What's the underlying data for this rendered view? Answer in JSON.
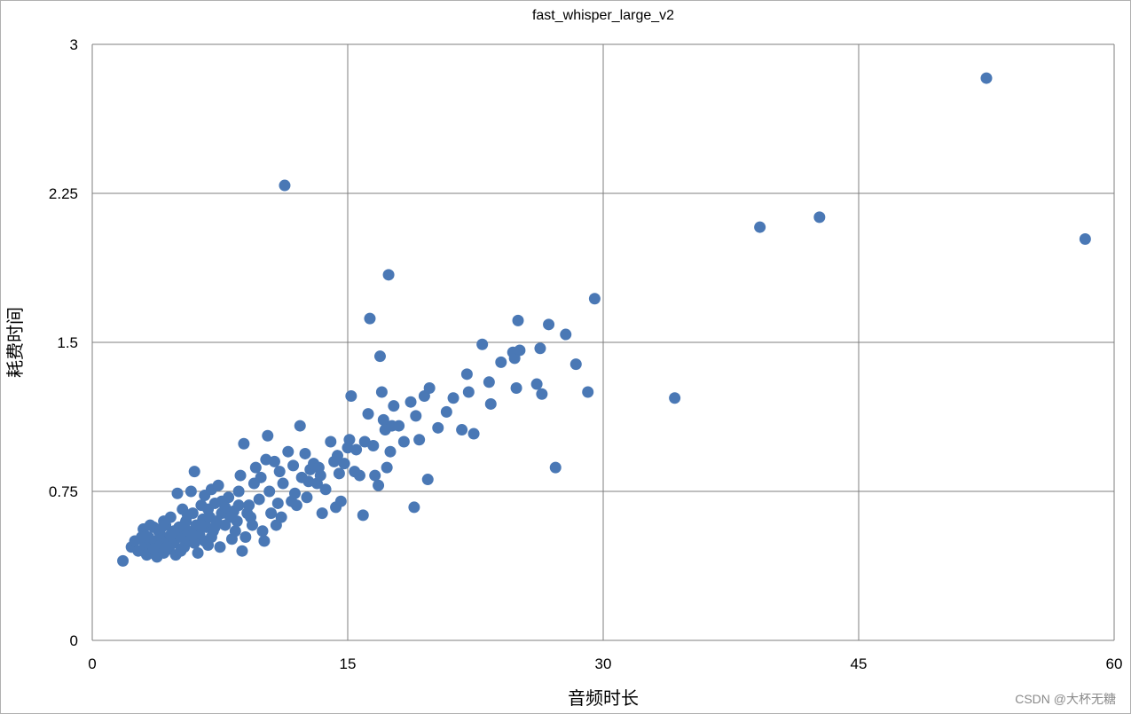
{
  "chart_data": {
    "type": "scatter",
    "title": "fast_whisper_large_v2",
    "xlabel": "音频时长",
    "ylabel": "耗费时间",
    "xlim": [
      0,
      60
    ],
    "ylim": [
      0,
      3
    ],
    "xticks": [
      "0",
      "15",
      "30",
      "45",
      "60"
    ],
    "yticks": [
      "0",
      "0.75",
      "1.5",
      "2.25",
      "3"
    ],
    "grid": true,
    "legend": "none",
    "point_color": "#4a78b5",
    "points": [
      [
        1.8,
        0.4
      ],
      [
        2.3,
        0.47
      ],
      [
        2.5,
        0.5
      ],
      [
        2.7,
        0.45
      ],
      [
        3.0,
        0.56
      ],
      [
        3.1,
        0.48
      ],
      [
        3.3,
        0.52
      ],
      [
        3.4,
        0.46
      ],
      [
        3.5,
        0.44
      ],
      [
        3.6,
        0.57
      ],
      [
        3.7,
        0.5
      ],
      [
        3.8,
        0.42
      ],
      [
        3.9,
        0.55
      ],
      [
        4.0,
        0.48
      ],
      [
        4.1,
        0.52
      ],
      [
        4.2,
        0.44
      ],
      [
        4.3,
        0.58
      ],
      [
        4.4,
        0.5
      ],
      [
        4.5,
        0.46
      ],
      [
        4.6,
        0.62
      ],
      [
        4.7,
        0.54
      ],
      [
        4.8,
        0.49
      ],
      [
        4.9,
        0.43
      ],
      [
        5.0,
        0.74
      ],
      [
        5.1,
        0.57
      ],
      [
        5.2,
        0.52
      ],
      [
        5.3,
        0.66
      ],
      [
        5.4,
        0.47
      ],
      [
        5.5,
        0.6
      ],
      [
        5.6,
        0.55
      ],
      [
        5.7,
        0.5
      ],
      [
        5.8,
        0.75
      ],
      [
        5.9,
        0.64
      ],
      [
        6.0,
        0.85
      ],
      [
        6.1,
        0.58
      ],
      [
        6.2,
        0.44
      ],
      [
        6.3,
        0.53
      ],
      [
        6.4,
        0.68
      ],
      [
        6.5,
        0.61
      ],
      [
        6.6,
        0.5
      ],
      [
        6.7,
        0.57
      ],
      [
        6.8,
        0.66
      ],
      [
        6.9,
        0.62
      ],
      [
        7.0,
        0.76
      ],
      [
        7.1,
        0.55
      ],
      [
        7.2,
        0.69
      ],
      [
        7.3,
        0.6
      ],
      [
        7.4,
        0.78
      ],
      [
        7.5,
        0.47
      ],
      [
        7.6,
        0.64
      ],
      [
        7.8,
        0.58
      ],
      [
        8.0,
        0.72
      ],
      [
        8.2,
        0.51
      ],
      [
        8.3,
        0.65
      ],
      [
        8.5,
        0.6
      ],
      [
        8.6,
        0.75
      ],
      [
        8.7,
        0.83
      ],
      [
        8.8,
        0.45
      ],
      [
        8.9,
        0.99
      ],
      [
        9.0,
        0.52
      ],
      [
        9.2,
        0.68
      ],
      [
        9.3,
        0.62
      ],
      [
        9.5,
        0.79
      ],
      [
        9.6,
        0.87
      ],
      [
        9.8,
        0.71
      ],
      [
        10.0,
        0.55
      ],
      [
        10.1,
        0.5
      ],
      [
        10.2,
        0.91
      ],
      [
        10.3,
        1.03
      ],
      [
        10.5,
        0.64
      ],
      [
        10.7,
        0.9
      ],
      [
        10.8,
        0.58
      ],
      [
        11.0,
        0.85
      ],
      [
        11.2,
        0.79
      ],
      [
        11.3,
        2.29
      ],
      [
        11.5,
        0.95
      ],
      [
        11.7,
        0.7
      ],
      [
        11.8,
        0.88
      ],
      [
        12.0,
        0.68
      ],
      [
        12.2,
        1.08
      ],
      [
        12.3,
        0.82
      ],
      [
        12.5,
        0.94
      ],
      [
        12.6,
        0.72
      ],
      [
        12.8,
        0.86
      ],
      [
        13.0,
        0.89
      ],
      [
        13.2,
        0.79
      ],
      [
        13.4,
        0.83
      ],
      [
        13.5,
        0.64
      ],
      [
        13.7,
        0.76
      ],
      [
        14.0,
        1.0
      ],
      [
        14.2,
        0.9
      ],
      [
        14.3,
        0.67
      ],
      [
        14.5,
        0.84
      ],
      [
        14.6,
        0.7
      ],
      [
        14.8,
        0.89
      ],
      [
        15.0,
        0.97
      ],
      [
        15.1,
        1.01
      ],
      [
        15.2,
        1.23
      ],
      [
        15.4,
        0.85
      ],
      [
        15.5,
        0.96
      ],
      [
        15.7,
        0.83
      ],
      [
        15.9,
        0.63
      ],
      [
        16.0,
        1.0
      ],
      [
        16.2,
        1.14
      ],
      [
        16.3,
        1.62
      ],
      [
        16.5,
        0.98
      ],
      [
        16.6,
        0.83
      ],
      [
        16.8,
        0.78
      ],
      [
        16.9,
        1.43
      ],
      [
        17.0,
        1.25
      ],
      [
        17.1,
        1.11
      ],
      [
        17.2,
        1.06
      ],
      [
        17.3,
        0.87
      ],
      [
        17.4,
        1.84
      ],
      [
        17.5,
        0.95
      ],
      [
        17.6,
        1.08
      ],
      [
        17.7,
        1.18
      ],
      [
        18.0,
        1.08
      ],
      [
        18.3,
        1.0
      ],
      [
        18.7,
        1.2
      ],
      [
        18.9,
        0.67
      ],
      [
        19.0,
        1.13
      ],
      [
        19.2,
        1.01
      ],
      [
        19.5,
        1.23
      ],
      [
        19.7,
        0.81
      ],
      [
        19.8,
        1.27
      ],
      [
        20.3,
        1.07
      ],
      [
        20.8,
        1.15
      ],
      [
        21.2,
        1.22
      ],
      [
        21.7,
        1.06
      ],
      [
        22.0,
        1.34
      ],
      [
        22.1,
        1.25
      ],
      [
        22.4,
        1.04
      ],
      [
        22.9,
        1.49
      ],
      [
        23.3,
        1.3
      ],
      [
        23.4,
        1.19
      ],
      [
        24.0,
        1.4
      ],
      [
        24.7,
        1.45
      ],
      [
        24.8,
        1.42
      ],
      [
        24.9,
        1.27
      ],
      [
        25.0,
        1.61
      ],
      [
        25.1,
        1.46
      ],
      [
        26.1,
        1.29
      ],
      [
        26.3,
        1.47
      ],
      [
        26.4,
        1.24
      ],
      [
        26.8,
        1.59
      ],
      [
        27.2,
        0.87
      ],
      [
        27.8,
        1.54
      ],
      [
        28.4,
        1.39
      ],
      [
        29.1,
        1.25
      ],
      [
        29.5,
        1.72
      ],
      [
        34.2,
        1.22
      ],
      [
        39.2,
        2.08
      ],
      [
        42.7,
        2.13
      ],
      [
        52.5,
        2.83
      ],
      [
        58.3,
        2.02
      ],
      [
        2.9,
        0.52
      ],
      [
        3.2,
        0.43
      ],
      [
        3.6,
        0.46
      ],
      [
        4.0,
        0.56
      ],
      [
        4.4,
        0.47
      ],
      [
        4.8,
        0.55
      ],
      [
        5.2,
        0.45
      ],
      [
        5.6,
        0.63
      ],
      [
        6.0,
        0.49
      ],
      [
        6.4,
        0.58
      ],
      [
        6.8,
        0.48
      ],
      [
        7.2,
        0.57
      ],
      [
        7.6,
        0.7
      ],
      [
        8.1,
        0.62
      ],
      [
        8.4,
        0.55
      ],
      [
        9.1,
        0.64
      ],
      [
        9.4,
        0.58
      ],
      [
        10.4,
        0.75
      ],
      [
        11.1,
        0.62
      ],
      [
        11.9,
        0.74
      ],
      [
        12.7,
        0.8
      ],
      [
        13.3,
        0.87
      ],
      [
        14.4,
        0.93
      ],
      [
        3.4,
        0.58
      ],
      [
        4.6,
        0.53
      ],
      [
        5.9,
        0.53
      ],
      [
        7.0,
        0.52
      ],
      [
        8.6,
        0.68
      ],
      [
        9.9,
        0.82
      ],
      [
        4.2,
        0.6
      ],
      [
        5.4,
        0.58
      ],
      [
        6.6,
        0.73
      ],
      [
        7.8,
        0.67
      ],
      [
        10.9,
        0.69
      ]
    ],
    "watermark": "CSDN @大杯无糖"
  }
}
